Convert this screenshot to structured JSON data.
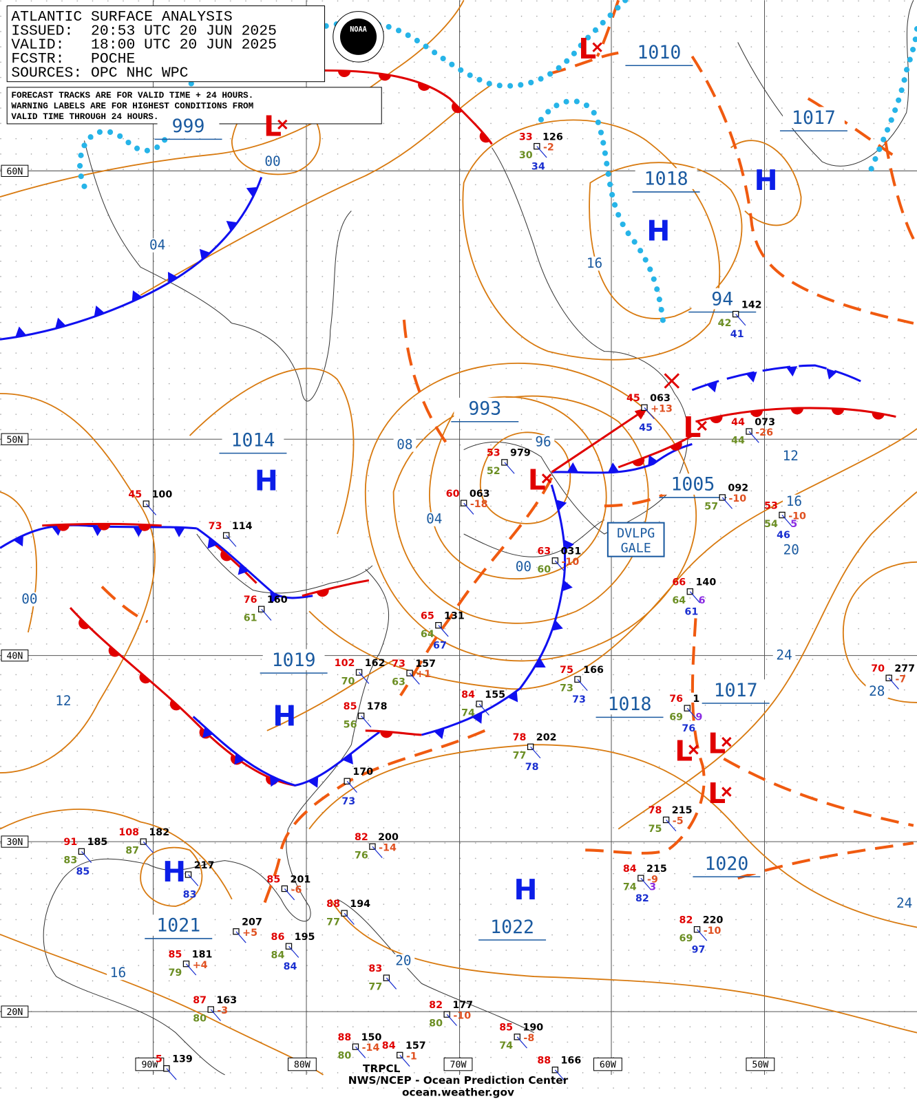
{
  "header": {
    "lines": [
      "ATLANTIC SURFACE ANALYSIS",
      "ISSUED:  20:53 UTC 20 JUN 2025",
      "VALID:   18:00 UTC 20 JUN 2025",
      "FCSTR:   POCHE",
      "SOURCES: OPC NHC WPC"
    ],
    "note": [
      "FORECAST TRACKS ARE FOR VALID TIME + 24 HOURS.",
      "WARNING LABELS ARE FOR HIGHEST CONDITIONS FROM",
      "VALID TIME THROUGH 24 HOURS."
    ],
    "logo": "NOAA"
  },
  "grid": {
    "lat_labels": [
      "60N",
      "50N",
      "40N",
      "30N",
      "20N"
    ],
    "lon_labels": [
      "90W",
      "80W",
      "70W",
      "60W",
      "50W"
    ]
  },
  "isobar_labels": [
    "1010",
    "1017",
    "1018",
    "999",
    "1014",
    "993",
    "1005",
    "1019",
    "1018",
    "1017",
    "1020",
    "1021",
    "1022",
    "94"
  ],
  "contour_labels": [
    "00",
    "04",
    "16",
    "08",
    "96",
    "04",
    "00",
    "12",
    "16",
    "20",
    "00",
    "12",
    "24",
    "28",
    "16",
    "20",
    "24"
  ],
  "highs": [
    "H",
    "H",
    "H",
    "H",
    "H",
    "H"
  ],
  "lows": [
    "L",
    "L",
    "L",
    "L",
    "L",
    "L",
    "L"
  ],
  "warning": {
    "lines": [
      "DVLPG",
      "GALE"
    ]
  },
  "stations": [
    {
      "temp": "33",
      "pressure": "126",
      "dew": "30",
      "tendency": "-2",
      "sst": "34"
    },
    {
      "pressure": "142",
      "dew": "42",
      "sst": "41"
    },
    {
      "temp": "45",
      "pressure": "063",
      "tendency": "+13",
      "sst": "45"
    },
    {
      "temp": "44",
      "pressure": "073",
      "tendency": "-26",
      "dew": "44"
    },
    {
      "temp": "53",
      "pressure": "979",
      "dew": "52"
    },
    {
      "temp": "60",
      "pressure": "063",
      "tendency": "-18"
    },
    {
      "pressure": "092",
      "tendency": "-10",
      "dew": "57"
    },
    {
      "temp": "45",
      "pressure": "100"
    },
    {
      "temp": "73",
      "pressure": "114"
    },
    {
      "temp": "63",
      "pressure": "031",
      "tendency": "-10",
      "dew": "60"
    },
    {
      "temp": "76",
      "pressure": "160",
      "dew": "61"
    },
    {
      "temp": "66",
      "pressure": "140",
      "dew": "64",
      "sst": "61",
      "extra": "6"
    },
    {
      "temp": "65",
      "pressure": "131",
      "dew": "64",
      "sst": "67"
    },
    {
      "temp": "102",
      "pressure": "162",
      "dew": "70"
    },
    {
      "temp": "73",
      "pressure": "157",
      "tendency": "+1",
      "dew": "63"
    },
    {
      "temp": "75",
      "pressure": "166",
      "dew": "73",
      "sst": "73"
    },
    {
      "temp": "84",
      "pressure": "155",
      "dew": "74"
    },
    {
      "temp": "85",
      "pressure": "178",
      "dew": "56"
    },
    {
      "temp": "78",
      "pressure": "202",
      "dew": "77",
      "sst": "78"
    },
    {
      "pressure": "170",
      "sst": "73"
    },
    {
      "temp": "78",
      "pressure": "215",
      "tendency": "-5",
      "dew": "75"
    },
    {
      "temp": "82",
      "pressure": "200",
      "tendency": "-14",
      "dew": "76"
    },
    {
      "temp": "91",
      "pressure": "185",
      "dew": "83",
      "sst": "85"
    },
    {
      "temp": "108",
      "pressure": "182",
      "dew": "87"
    },
    {
      "pressure": "217",
      "sst": "83"
    },
    {
      "temp": "84",
      "pressure": "215",
      "tendency": "-9",
      "dew": "74",
      "sst": "82",
      "extra": "3"
    },
    {
      "temp": "85",
      "pressure": "201",
      "tendency": "-6"
    },
    {
      "pressure": "207",
      "tendency": "+5"
    },
    {
      "temp": "86",
      "pressure": "195",
      "dew": "84",
      "sst": "84"
    },
    {
      "temp": "82",
      "pressure": "220",
      "tendency": "-10",
      "dew": "69",
      "sst": "97"
    },
    {
      "temp": "85",
      "pressure": "181",
      "tendency": "+4",
      "dew": "79"
    },
    {
      "temp": "88",
      "pressure": "194",
      "dew": "77"
    },
    {
      "temp": "87",
      "pressure": "163",
      "tendency": "-3",
      "dew": "80"
    },
    {
      "temp": "82",
      "pressure": "177",
      "tendency": "-10",
      "dew": "80"
    },
    {
      "temp": "85",
      "pressure": "190",
      "tendency": "-8",
      "dew": "74"
    },
    {
      "temp": "88",
      "pressure": "150",
      "tendency": "-14",
      "dew": "80"
    },
    {
      "temp": "84",
      "pressure": "157",
      "tendency": "-1"
    },
    {
      "temp": "88",
      "pressure": "166"
    },
    {
      "temp": "5",
      "pressure": "139"
    },
    {
      "temp": "70",
      "pressure": "277",
      "tendency": "-7"
    },
    {
      "temp": "53",
      "tendency": "-10",
      "dew": "54",
      "sst": "46",
      "extra": "5"
    },
    {
      "temp": "83",
      "dew": "77"
    },
    {
      "temp": "76",
      "pressure": "1",
      "dew": "69",
      "sst": "76",
      "extra": "9"
    }
  ],
  "footer": {
    "tag": "TRPCL",
    "agency": "NWS/NCEP - Ocean Prediction Center",
    "url": "ocean.weather.gov"
  }
}
